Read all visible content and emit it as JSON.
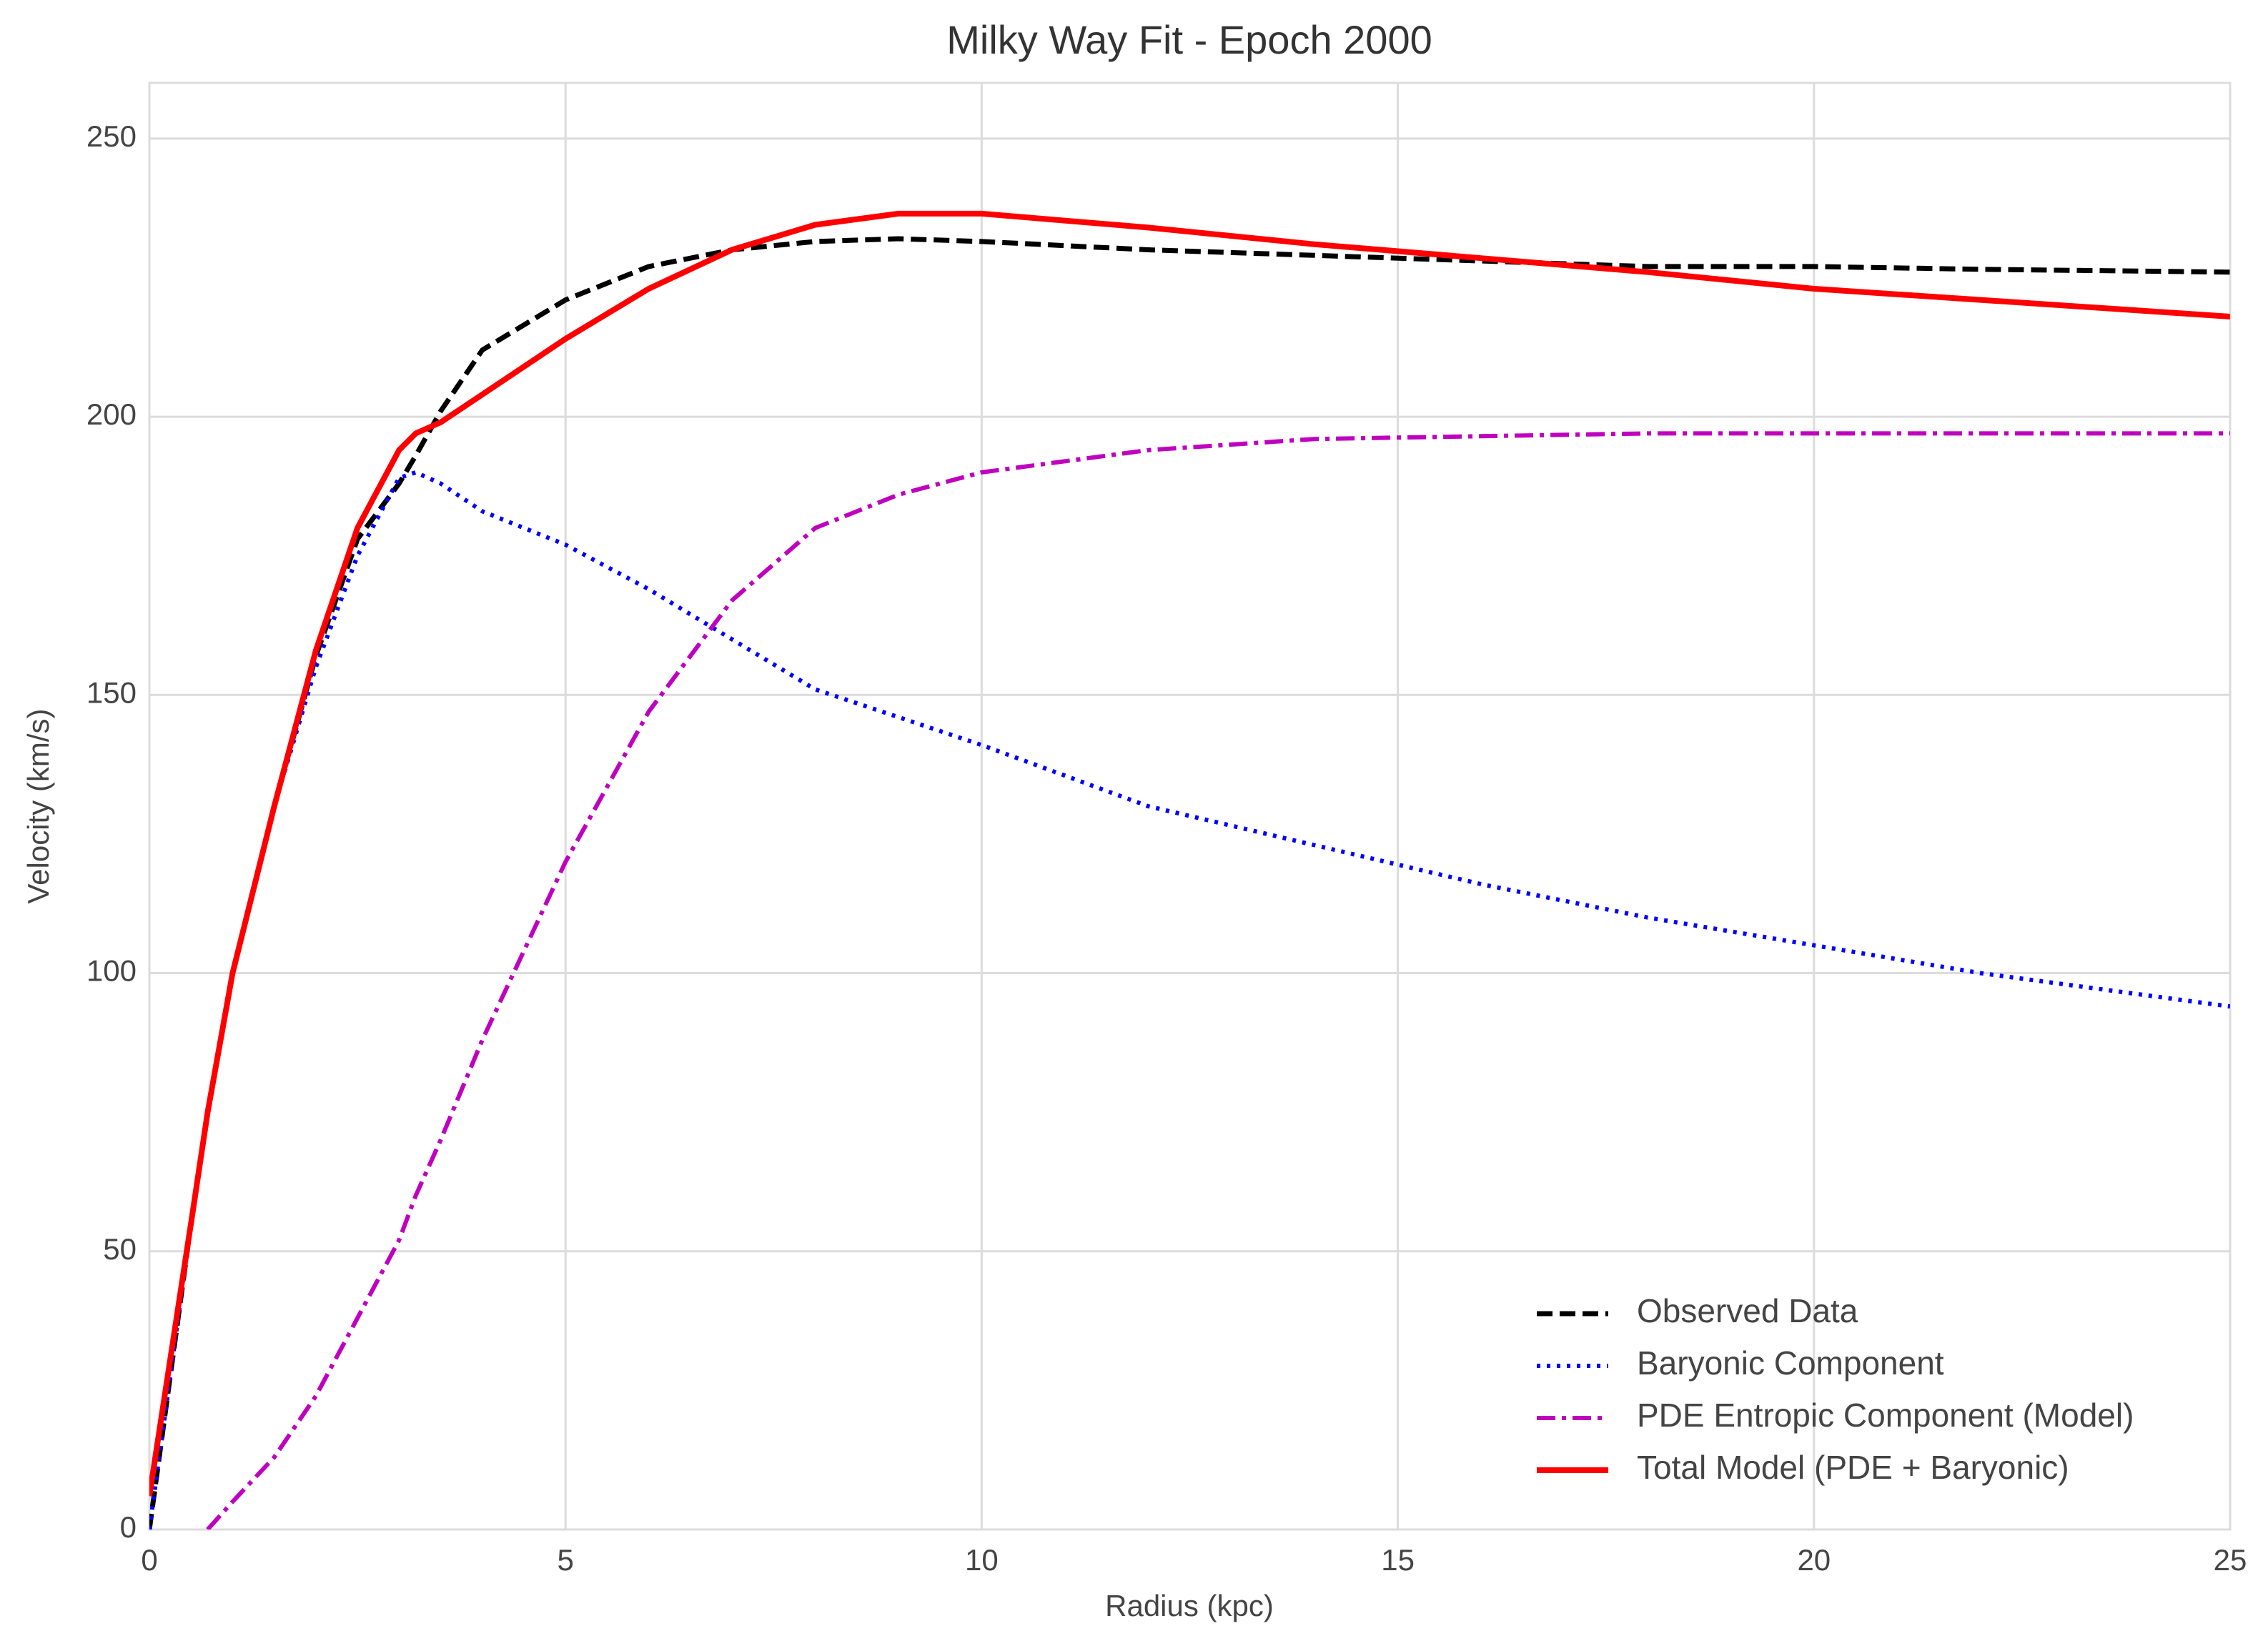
{
  "chart_data": {
    "type": "line",
    "title": "Milky Way Fit - Epoch 2000",
    "xlabel": "Radius (kpc)",
    "ylabel": "Velocity (km/s)",
    "x": [
      0,
      0.5,
      0.7,
      1,
      1.5,
      2,
      2.5,
      3,
      3.2,
      3.5,
      4,
      5,
      6,
      7,
      8,
      9,
      10,
      12,
      14,
      16,
      18,
      20,
      22,
      25
    ],
    "series": [
      {
        "name": "Observed Data",
        "color": "#000000",
        "linestyle": "dashed",
        "values": [
          0,
          55,
          75,
          100,
          130,
          157,
          178,
          188,
          193,
          201,
          212,
          221,
          227,
          230,
          231.5,
          232,
          231.5,
          230,
          229,
          228,
          227,
          227,
          226.5,
          226
        ]
      },
      {
        "name": "Baryonic Component",
        "color": "#0000ff",
        "linestyle": "dotted",
        "values": [
          0,
          55,
          75,
          100,
          130,
          155,
          175,
          189,
          190,
          188,
          183,
          177,
          169,
          160,
          151,
          146,
          141,
          130,
          123,
          116,
          110,
          105,
          100,
          94
        ]
      },
      {
        "name": "PDE Entropic Component (Model)",
        "color": "#bf00bf",
        "linestyle": "dashdot",
        "values": [
          null,
          null,
          0,
          5,
          13,
          24,
          38,
          52,
          60,
          70,
          88,
          120,
          147,
          167,
          180,
          186,
          190,
          194,
          196,
          196.5,
          197,
          197,
          197,
          197
        ]
      },
      {
        "name": "Total Model (PDE + Baryonic)",
        "color": "#ff0000",
        "linestyle": "solid",
        "values": [
          6,
          55,
          75,
          100,
          130,
          158,
          180,
          194,
          197,
          199,
          204,
          214,
          223,
          230,
          234.5,
          236.5,
          236.5,
          234,
          231,
          228.5,
          226,
          223,
          221,
          218
        ]
      }
    ],
    "xlim": [
      0,
      25
    ],
    "ylim": [
      0,
      260
    ],
    "xticks": [
      0,
      5,
      10,
      15,
      20,
      25
    ],
    "yticks": [
      0,
      50,
      100,
      150,
      200,
      250
    ],
    "grid": true,
    "legend": "lower right"
  }
}
